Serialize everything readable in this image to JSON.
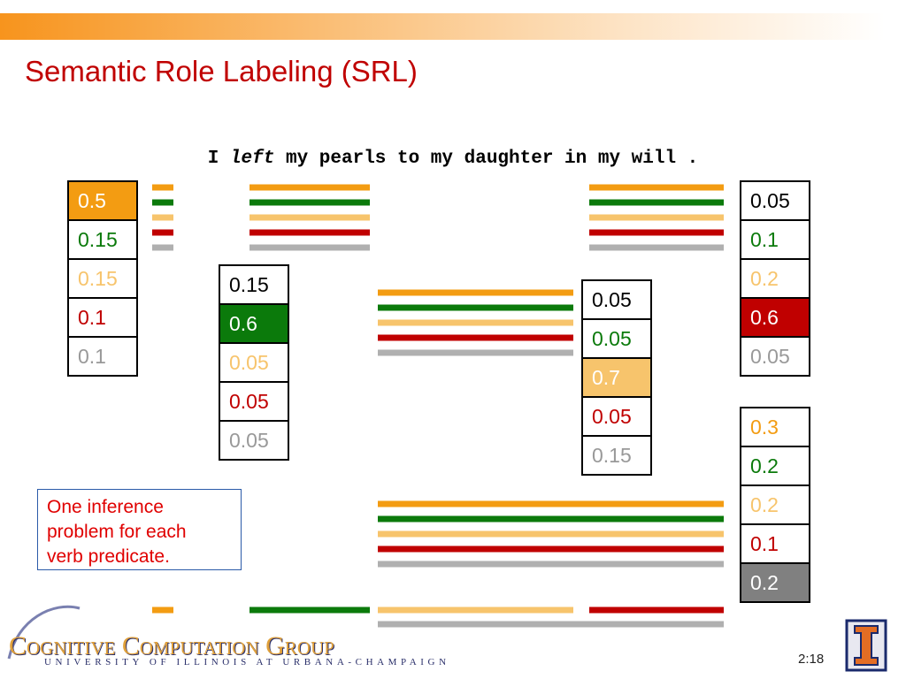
{
  "title": "Semantic Role Labeling (SRL)",
  "sentence": {
    "before": "I",
    "verb": "left",
    "after": "my pearls to my daughter in my will ."
  },
  "tables": [
    {
      "cells": [
        "0.5",
        "0.15",
        "0.15",
        "0.1",
        "0.1"
      ]
    },
    {
      "cells": [
        "0.15",
        "0.6",
        "0.05",
        "0.05",
        "0.05"
      ]
    },
    {
      "cells": [
        "0.05",
        "0.05",
        "0.7",
        "0.05",
        "0.15"
      ]
    },
    {
      "cells": [
        "0.05",
        "0.1",
        "0.2",
        "0.6",
        "0.05"
      ]
    },
    {
      "cells": [
        "0.3",
        "0.2",
        "0.2",
        "0.1",
        "0.2"
      ]
    }
  ],
  "note": [
    "One inference",
    "problem for each",
    "verb predicate."
  ],
  "footer": {
    "group": "Cognitive Computation Group",
    "university": "UNIVERSITY OF ILLINOIS AT URBANA-CHAMPAIGN",
    "page": "2:18"
  }
}
